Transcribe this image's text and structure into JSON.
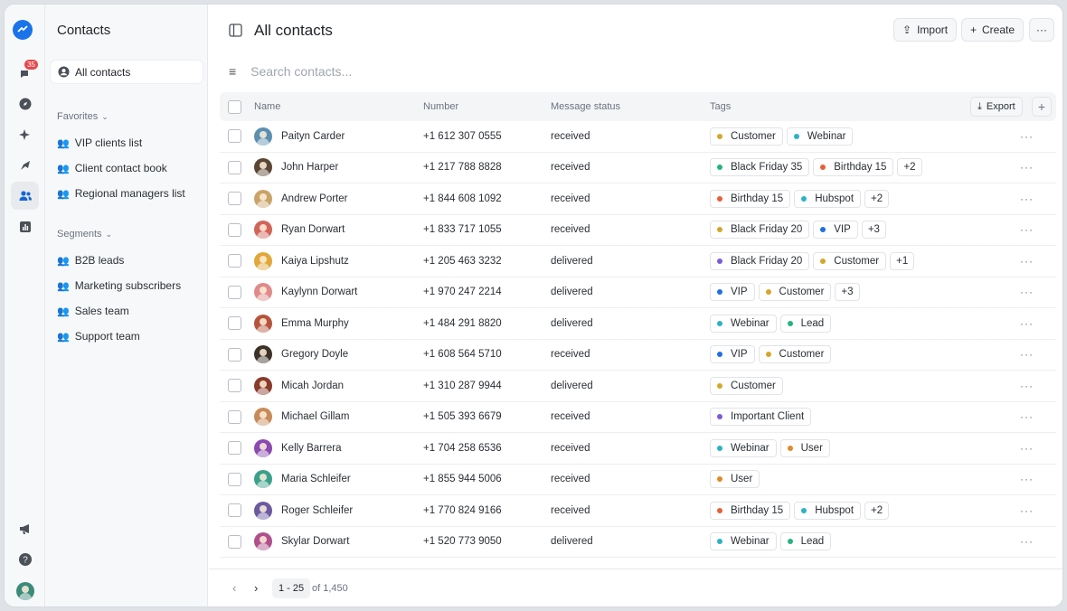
{
  "rail": {
    "badge": "35"
  },
  "sidebar": {
    "title": "Contacts",
    "all_contacts": "All contacts",
    "favorites_label": "Favorites",
    "favorites": [
      "VIP clients list",
      "Client contact book",
      "Regional managers list"
    ],
    "segments_label": "Segments",
    "segments": [
      "B2B leads",
      "Marketing subscribers",
      "Sales team",
      "Support team"
    ]
  },
  "header": {
    "title": "All contacts",
    "import": "Import",
    "create": "Create",
    "search_placeholder": "Search contacts..."
  },
  "table": {
    "columns": {
      "name": "Name",
      "number": "Number",
      "status": "Message status",
      "tags": "Tags",
      "export": "Export"
    },
    "rows": [
      {
        "name": "Paityn Carder",
        "number": "+1 612 307 0555",
        "status": "received",
        "av": "#5b8fb0",
        "tags": [
          {
            "label": "Customer",
            "color": "#d4a72c"
          },
          {
            "label": "Webinar",
            "color": "#2ab3c6"
          }
        ],
        "extra": ""
      },
      {
        "name": "John Harper",
        "number": "+1 217 788 8828",
        "status": "received",
        "av": "#5a4632",
        "tags": [
          {
            "label": "Black Friday 35",
            "color": "#24b47e"
          },
          {
            "label": "Birthday 15",
            "color": "#e5603a"
          }
        ],
        "extra": "+2"
      },
      {
        "name": "Andrew Porter",
        "number": "+1 844 608 1092",
        "status": "received",
        "av": "#c9a469",
        "tags": [
          {
            "label": "Birthday 15",
            "color": "#e5603a"
          },
          {
            "label": "Hubspot",
            "color": "#2ab3c6"
          }
        ],
        "extra": "+2"
      },
      {
        "name": "Ryan Dorwart",
        "number": "+1 833 717 1055",
        "status": "received",
        "av": "#d0655a",
        "tags": [
          {
            "label": "Black Friday 20",
            "color": "#d4a72c"
          },
          {
            "label": "VIP",
            "color": "#1f6fe0"
          }
        ],
        "extra": "+3"
      },
      {
        "name": "Kaiya Lipshutz",
        "number": "+1 205 463 3232",
        "status": "delivered",
        "av": "#e0a83a",
        "tags": [
          {
            "label": "Black Friday 20",
            "color": "#7c5bd6"
          },
          {
            "label": "Customer",
            "color": "#d4a72c"
          }
        ],
        "extra": "+1"
      },
      {
        "name": "Kaylynn Dorwart",
        "number": "+1 970 247 2214",
        "status": "delivered",
        "av": "#e08a8a",
        "tags": [
          {
            "label": "VIP",
            "color": "#1f6fe0"
          },
          {
            "label": "Customer",
            "color": "#d4a72c"
          }
        ],
        "extra": "+3"
      },
      {
        "name": "Emma Murphy",
        "number": "+1 484 291 8820",
        "status": "delivered",
        "av": "#b5543c",
        "tags": [
          {
            "label": "Webinar",
            "color": "#2ab3c6"
          },
          {
            "label": "Lead",
            "color": "#24b47e"
          }
        ],
        "extra": ""
      },
      {
        "name": "Gregory Doyle",
        "number": "+1 608 564 5710",
        "status": "received",
        "av": "#3d3228",
        "tags": [
          {
            "label": "VIP",
            "color": "#1f6fe0"
          },
          {
            "label": "Customer",
            "color": "#d4a72c"
          }
        ],
        "extra": ""
      },
      {
        "name": "Micah Jordan",
        "number": "+1 310 287 9944",
        "status": "delivered",
        "av": "#8a3a2a",
        "tags": [
          {
            "label": "Customer",
            "color": "#d4a72c"
          }
        ],
        "extra": ""
      },
      {
        "name": "Michael Gillam",
        "number": "+1 505 393 6679",
        "status": "received",
        "av": "#c98a5a",
        "tags": [
          {
            "label": "Important Client",
            "color": "#7c5bd6"
          }
        ],
        "extra": ""
      },
      {
        "name": "Kelly Barrera",
        "number": "+1 704 258 6536",
        "status": "received",
        "av": "#8a4ab0",
        "tags": [
          {
            "label": "Webinar",
            "color": "#2ab3c6"
          },
          {
            "label": "User",
            "color": "#e08a2a"
          }
        ],
        "extra": ""
      },
      {
        "name": "Maria Schleifer",
        "number": "+1 855 944 5006",
        "status": "received",
        "av": "#3aa08a",
        "tags": [
          {
            "label": "User",
            "color": "#e08a2a"
          }
        ],
        "extra": ""
      },
      {
        "name": "Roger Schleifer",
        "number": "+1 770 824 9166",
        "status": "received",
        "av": "#6a5aa0",
        "tags": [
          {
            "label": "Birthday 15",
            "color": "#e5603a"
          },
          {
            "label": "Hubspot",
            "color": "#2ab3c6"
          }
        ],
        "extra": "+2"
      },
      {
        "name": "Skylar Dorwart",
        "number": "+1 520 773 9050",
        "status": "delivered",
        "av": "#b0508a",
        "tags": [
          {
            "label": "Webinar",
            "color": "#2ab3c6"
          },
          {
            "label": "Lead",
            "color": "#24b47e"
          }
        ],
        "extra": ""
      }
    ]
  },
  "footer": {
    "range": "1 - 25",
    "of": "of 1,450"
  }
}
